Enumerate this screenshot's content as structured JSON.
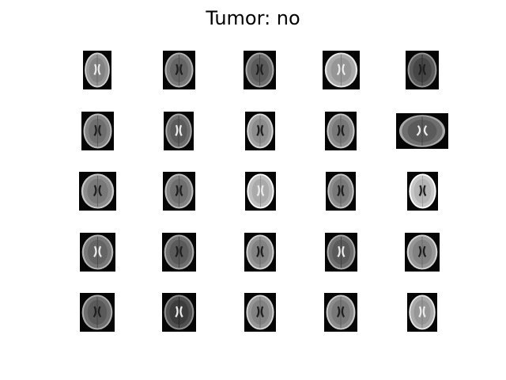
{
  "title": "Tumor: no"
}
